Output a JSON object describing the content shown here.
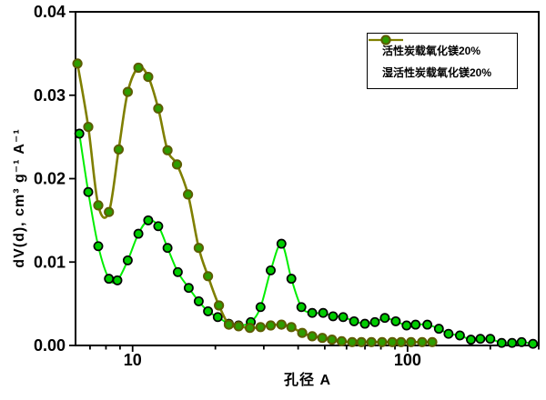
{
  "chart_data": {
    "type": "line",
    "title": "",
    "xlabel": "孔径  A",
    "ylabel": "dV(d), cm³ g⁻¹ A⁻¹",
    "x_scale": "log",
    "xlim": [
      6.2,
      300
    ],
    "ylim": [
      0,
      0.04
    ],
    "x_major_ticks": [
      10,
      100
    ],
    "x_major_tick_labels": [
      "10",
      "100"
    ],
    "x_minor_ticks": [
      7,
      8,
      9,
      20,
      30,
      40,
      50,
      60,
      70,
      80,
      90,
      200,
      300
    ],
    "y_ticks": [
      0,
      0.01,
      0.02,
      0.03,
      0.04
    ],
    "y_tick_labels": [
      "0.00",
      "0.01",
      "0.02",
      "0.03",
      "0.04"
    ],
    "grid": false,
    "legend_position": "top-right",
    "frame_color": "#000000",
    "series": [
      {
        "name": "活性炭载氧化镁20%",
        "line_color": "#00ee00",
        "marker_fill": "#00cc00",
        "marker_edge": "#000000",
        "points": [
          [
            6.4,
            0.0254
          ],
          [
            6.9,
            0.0184
          ],
          [
            7.5,
            0.0119
          ],
          [
            8.2,
            0.008
          ],
          [
            8.8,
            0.0078
          ],
          [
            9.6,
            0.0102
          ],
          [
            10.5,
            0.0134
          ],
          [
            11.4,
            0.015
          ],
          [
            12.4,
            0.0143
          ],
          [
            13.4,
            0.0117
          ],
          [
            14.6,
            0.0088
          ],
          [
            16,
            0.0069
          ],
          [
            17.4,
            0.0053
          ],
          [
            18.8,
            0.0041
          ],
          [
            20.4,
            0.0034
          ],
          [
            22.4,
            0.0026
          ],
          [
            24.3,
            0.0024
          ],
          [
            26.9,
            0.0028
          ],
          [
            29.2,
            0.0046
          ],
          [
            31.8,
            0.009
          ],
          [
            34.8,
            0.0122
          ],
          [
            37.8,
            0.008
          ],
          [
            41.1,
            0.0046
          ],
          [
            45,
            0.0039
          ],
          [
            49.3,
            0.0039
          ],
          [
            53.6,
            0.0035
          ],
          [
            58.3,
            0.0034
          ],
          [
            63.9,
            0.0029
          ],
          [
            70,
            0.0026
          ],
          [
            76.1,
            0.0028
          ],
          [
            82.7,
            0.0033
          ],
          [
            90.6,
            0.0029
          ],
          [
            99.2,
            0.0024
          ],
          [
            107,
            0.0025
          ],
          [
            118,
            0.0025
          ],
          [
            130,
            0.002
          ],
          [
            141,
            0.0014
          ],
          [
            155,
            0.0012
          ],
          [
            170,
            0.0007
          ],
          [
            184,
            0.0008
          ],
          [
            200,
            0.0008
          ],
          [
            220,
            0.0003
          ],
          [
            240,
            0.0003
          ],
          [
            260,
            0.0004
          ],
          [
            286,
            0.0002
          ]
        ]
      },
      {
        "name": "湿活性炭载氧化镁20%",
        "line_color": "#7f7f00",
        "marker_fill": "#2e9c00",
        "marker_edge": "#5c5c00",
        "points": [
          [
            6.3,
            0.0338
          ],
          [
            6.9,
            0.0262
          ],
          [
            7.5,
            0.0168
          ],
          [
            8.2,
            0.016
          ],
          [
            8.9,
            0.0235
          ],
          [
            9.6,
            0.0304
          ],
          [
            10.5,
            0.0333
          ],
          [
            11.4,
            0.0322
          ],
          [
            12.4,
            0.0284
          ],
          [
            13.4,
            0.0234
          ],
          [
            14.5,
            0.0217
          ],
          [
            15.9,
            0.0181
          ],
          [
            17.4,
            0.0117
          ],
          [
            18.8,
            0.0083
          ],
          [
            20.6,
            0.0048
          ],
          [
            22.4,
            0.0025
          ],
          [
            24.3,
            0.0023
          ],
          [
            26.7,
            0.0021
          ],
          [
            29.2,
            0.0022
          ],
          [
            31.8,
            0.0024
          ],
          [
            34.8,
            0.0025
          ],
          [
            37.8,
            0.0022
          ],
          [
            41.4,
            0.0015
          ],
          [
            45,
            0.0011
          ],
          [
            49,
            0.0009
          ],
          [
            53.1,
            0.0007
          ],
          [
            57.6,
            0.0005
          ],
          [
            62.9,
            0.0004
          ],
          [
            68,
            0.0004
          ],
          [
            73.9,
            0.0004
          ],
          [
            80.8,
            0.0004
          ],
          [
            88,
            0.0004
          ],
          [
            94.8,
            0.0004
          ],
          [
            103,
            0.0004
          ],
          [
            113,
            0.0004
          ],
          [
            123,
            0.0004
          ]
        ]
      }
    ]
  }
}
